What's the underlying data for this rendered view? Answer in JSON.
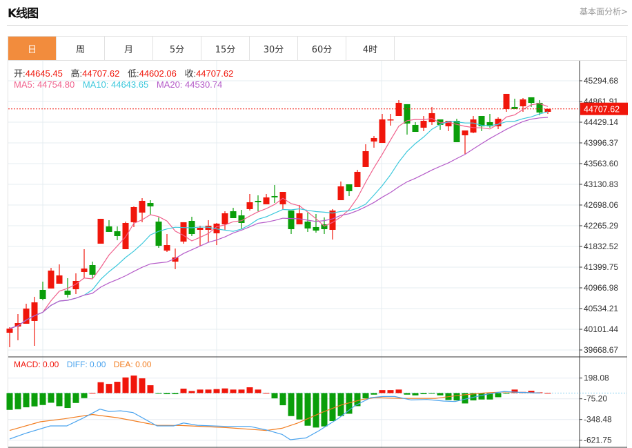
{
  "header": {
    "title": "K线图",
    "more_link": "基本面分析>"
  },
  "tabs": [
    {
      "label": "日",
      "active": true
    },
    {
      "label": "周"
    },
    {
      "label": "月"
    },
    {
      "label": "5分"
    },
    {
      "label": "15分"
    },
    {
      "label": "30分"
    },
    {
      "label": "60分"
    },
    {
      "label": "4时"
    }
  ],
  "ohlc_legend": {
    "open_label": "开:",
    "open": "44645.45",
    "high_label": "高:",
    "high": "44707.62",
    "low_label": "低:",
    "low": "44602.06",
    "close_label": "收:",
    "close": "44707.62"
  },
  "ma_legend": {
    "ma5": "MA5: 44754.80",
    "ma10": "MA10: 44643.65",
    "ma20": "MA20: 44530.74"
  },
  "macd_legend": {
    "macd": "MACD: 0.00",
    "diff": "DIFF: 0.00",
    "dea": "DEA: 0.00"
  },
  "current_price": "44707.62",
  "colors": {
    "up": "#f0160b",
    "down": "#0a9e0a",
    "ma5": "#f0608c",
    "ma10": "#3cc8dc",
    "ma20": "#b45ac8",
    "diff": "#4aa3ee",
    "dea": "#f27d20",
    "tab_active": "#f28c3d"
  },
  "chart_data": [
    {
      "type": "candlestick",
      "title": "K线图",
      "y_ticks": [
        "45294.68",
        "44861.91",
        "44429.14",
        "43996.37",
        "43563.60",
        "43130.83",
        "42698.06",
        "42265.29",
        "41832.52",
        "41399.75",
        "40966.98",
        "40534.21",
        "40101.44",
        "39668.67"
      ],
      "ylim": [
        39668.67,
        45294.68
      ],
      "ma_periods": [
        5,
        10,
        20
      ],
      "candles": [
        [
          40029,
          40116,
          40145,
          39726
        ],
        [
          40159,
          40231,
          40419,
          39871
        ],
        [
          40217,
          40534,
          40635,
          40217
        ],
        [
          40275,
          40664,
          40780,
          39755
        ],
        [
          40924,
          40736,
          41097,
          40707
        ],
        [
          40953,
          41328,
          41385,
          40953
        ],
        [
          41054,
          41227,
          41458,
          41054
        ],
        [
          40909,
          40823,
          41169,
          40765
        ],
        [
          40938,
          41111,
          41270,
          40837
        ],
        [
          41299,
          41371,
          41775,
          41169
        ],
        [
          41443,
          41241,
          41515,
          41169
        ],
        [
          41890,
          42410,
          42410,
          41890
        ],
        [
          42251,
          42136,
          42381,
          42136
        ],
        [
          42150,
          42049,
          42251,
          41962
        ],
        [
          41775,
          42323,
          42352,
          41775
        ],
        [
          42338,
          42655,
          42669,
          42237
        ],
        [
          42540,
          42785,
          42842,
          42338
        ],
        [
          42741,
          42669,
          42799,
          42496
        ],
        [
          42352,
          41847,
          42439,
          41804
        ],
        [
          41746,
          41861,
          42092,
          41717
        ],
        [
          41515,
          41602,
          41789,
          41357
        ],
        [
          41934,
          42338,
          42338,
          41890
        ],
        [
          42366,
          42092,
          42453,
          42049
        ],
        [
          42179,
          42222,
          42265,
          41833
        ],
        [
          42179,
          42265,
          42381,
          41919
        ],
        [
          42107,
          42309,
          42323,
          41861
        ],
        [
          42294,
          42525,
          42568,
          42179
        ],
        [
          42568,
          42424,
          42640,
          42424
        ],
        [
          42482,
          42323,
          42597,
          42193
        ],
        [
          42612,
          42756,
          42929,
          42583
        ],
        [
          42785,
          42756,
          42900,
          42568
        ],
        [
          42713,
          42857,
          42929,
          42713
        ],
        [
          42886,
          42857,
          43117,
          42741
        ],
        [
          42713,
          42972,
          42972,
          42612
        ],
        [
          42583,
          42193,
          42583,
          42092
        ],
        [
          42294,
          42525,
          42698,
          42294
        ],
        [
          42352,
          42208,
          42540,
          42136
        ],
        [
          42237,
          42164,
          42511,
          42121
        ],
        [
          42294,
          42193,
          42439,
          42092
        ],
        [
          42179,
          42583,
          42612,
          41977
        ],
        [
          42799,
          43088,
          43189,
          42799
        ],
        [
          43131,
          42987,
          43131,
          42886
        ],
        [
          43073,
          43391,
          43434,
          43073
        ],
        [
          43492,
          43823,
          43968,
          43492
        ],
        [
          44025,
          44098,
          44141,
          43896
        ],
        [
          43996,
          44487,
          44602,
          43996
        ],
        [
          44472,
          44487,
          44602,
          44357
        ],
        [
          44559,
          44834,
          44891,
          44559
        ],
        [
          44805,
          44401,
          44805,
          44170
        ],
        [
          44372,
          44227,
          44429,
          44227
        ],
        [
          44314,
          44458,
          44559,
          44242
        ],
        [
          44429,
          44617,
          44747,
          44372
        ],
        [
          44487,
          44372,
          44487,
          44271
        ],
        [
          44343,
          44458,
          44458,
          44242
        ],
        [
          44458,
          44011,
          44501,
          44011
        ],
        [
          44155,
          44256,
          44256,
          43766
        ],
        [
          44213,
          44487,
          44559,
          44199
        ],
        [
          44559,
          44343,
          44559,
          44242
        ],
        [
          44429,
          44343,
          44602,
          44314
        ],
        [
          44343,
          44501,
          44530,
          44285
        ],
        [
          44703,
          45021,
          45021,
          44646
        ],
        [
          44747,
          44703,
          44920,
          44703
        ],
        [
          44761,
          44905,
          44934,
          44646
        ],
        [
          44949,
          44833,
          44949,
          44747
        ],
        [
          44834,
          44631,
          44891,
          44574
        ],
        [
          44645.45,
          44707.62,
          44707.62,
          44602.06
        ]
      ]
    },
    {
      "type": "bar+line",
      "title": "MACD",
      "y_ticks": [
        "198.08",
        "-75.20",
        "-348.48",
        "-621.75"
      ],
      "ylim": [
        -700,
        300
      ],
      "histogram": [
        -222,
        -213,
        -188,
        -176,
        -158,
        -128,
        -173,
        -197,
        -131,
        -67,
        3,
        143,
        121,
        149,
        206,
        231,
        194,
        103,
        -9,
        -15,
        -15,
        58,
        27,
        46,
        46,
        52,
        61,
        46,
        46,
        76,
        46,
        3,
        -70,
        -161,
        -304,
        -349,
        -431,
        -455,
        -440,
        -370,
        -304,
        -273,
        -173,
        -70,
        -21,
        39,
        39,
        46,
        -21,
        -30,
        -15,
        -9,
        -30,
        -91,
        -97,
        -137,
        -97,
        -85,
        -85,
        -55,
        -6,
        46,
        15,
        30,
        9,
        3
      ],
      "diff": [
        [
          0,
          -607
        ],
        [
          1.9,
          -532
        ],
        [
          4.9,
          -434
        ],
        [
          6.9,
          -434
        ],
        [
          8.8,
          -334
        ],
        [
          10.9,
          -212
        ],
        [
          12,
          -243
        ],
        [
          13.4,
          -234
        ],
        [
          14.9,
          -258
        ],
        [
          17.8,
          -434
        ],
        [
          19.8,
          -434
        ],
        [
          21,
          -395
        ],
        [
          22.7,
          -425
        ],
        [
          26.1,
          -440
        ],
        [
          29,
          -440
        ],
        [
          31,
          -486
        ],
        [
          32.9,
          -546
        ],
        [
          33.9,
          -616
        ],
        [
          35.8,
          -592
        ],
        [
          37.3,
          -501
        ],
        [
          39.7,
          -334
        ],
        [
          41.7,
          -167
        ],
        [
          43.6,
          -61
        ],
        [
          45.1,
          -46
        ],
        [
          46.5,
          -46
        ],
        [
          48.5,
          -91
        ],
        [
          50.4,
          -85
        ],
        [
          52.4,
          -106
        ],
        [
          53.8,
          -112
        ],
        [
          55.8,
          -61
        ],
        [
          57.7,
          -15
        ],
        [
          59.7,
          21
        ],
        [
          61.6,
          9
        ],
        [
          64.1,
          0
        ]
      ],
      "dea": [
        [
          0,
          -494
        ],
        [
          3.7,
          -379
        ],
        [
          6.6,
          -340
        ],
        [
          10,
          -283
        ],
        [
          13,
          -325
        ],
        [
          14.9,
          -364
        ],
        [
          17.8,
          -425
        ],
        [
          20.7,
          -428
        ],
        [
          26.1,
          -455
        ],
        [
          31,
          -494
        ],
        [
          32.9,
          -465
        ],
        [
          34.8,
          -395
        ],
        [
          37.8,
          -252
        ],
        [
          40.2,
          -152
        ],
        [
          42.6,
          -85
        ],
        [
          44.1,
          -61
        ],
        [
          47.5,
          -70
        ],
        [
          51.4,
          -70
        ],
        [
          54.3,
          -30
        ],
        [
          57.2,
          0
        ],
        [
          59.7,
          15
        ],
        [
          64.1,
          0
        ]
      ]
    }
  ]
}
